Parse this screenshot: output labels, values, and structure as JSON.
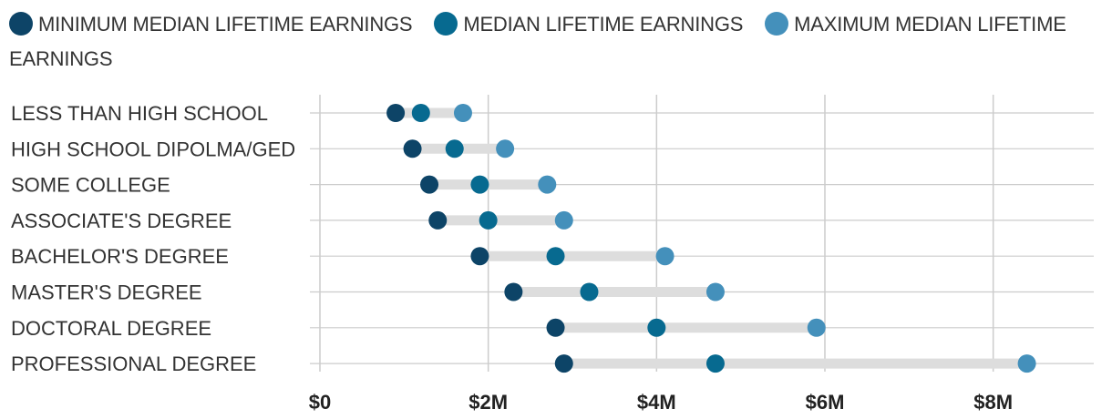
{
  "chart_data": {
    "type": "dumbbell",
    "title": "",
    "xlabel": "",
    "ylabel": "",
    "xlim": [
      0,
      9
    ],
    "x_ticks": [
      0,
      2,
      4,
      6,
      8
    ],
    "x_tick_labels": [
      "$0",
      "$2M",
      "$4M",
      "$6M",
      "$8M"
    ],
    "unit": "$M",
    "grid": true,
    "legend_position": "top",
    "categories": [
      "LESS THAN HIGH SCHOOL",
      "HIGH SCHOOL DIPOLMA/GED",
      "SOME COLLEGE",
      "ASSOCIATE'S DEGREE",
      "BACHELOR'S DEGREE",
      "MASTER'S DEGREE",
      "DOCTORAL DEGREE",
      "PROFESSIONAL DEGREE"
    ],
    "series": [
      {
        "name": "MINIMUM MEDIAN LIFETIME EARNINGS",
        "color": "#0d4467",
        "values": [
          0.9,
          1.1,
          1.3,
          1.4,
          1.9,
          2.3,
          2.8,
          2.9
        ]
      },
      {
        "name": "MEDIAN LIFETIME EARNINGS",
        "color": "#076a90",
        "values": [
          1.2,
          1.6,
          1.9,
          2.0,
          2.8,
          3.2,
          4.0,
          4.7
        ]
      },
      {
        "name": "MAXIMUM MEDIAN LIFETIME EARNINGS",
        "color": "#4490bb",
        "values": [
          1.7,
          2.2,
          2.7,
          2.9,
          4.1,
          4.7,
          5.9,
          8.4
        ]
      }
    ],
    "colors": {
      "range_bar": "#dddddd",
      "grid": "#cccccc"
    }
  }
}
